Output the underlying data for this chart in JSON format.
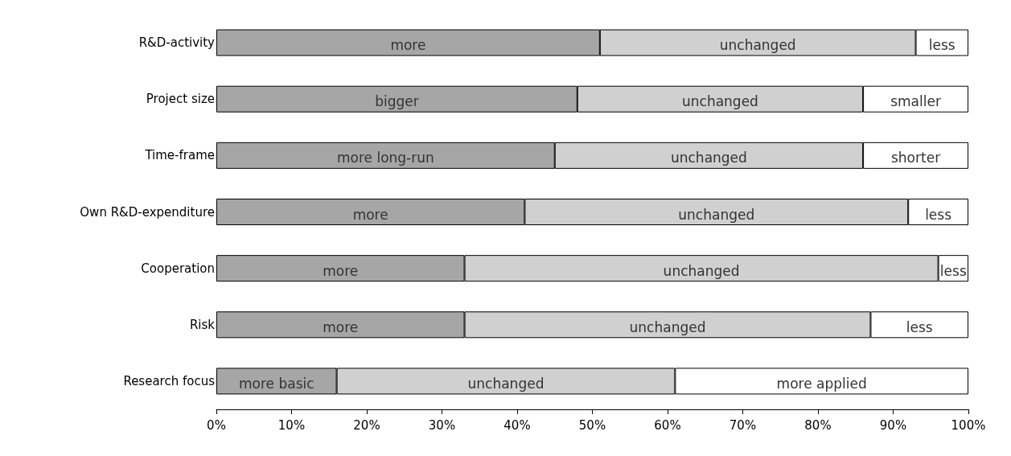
{
  "chart_data": {
    "type": "bar",
    "orientation": "horizontal",
    "stacked": true,
    "grid": false,
    "categories": [
      "R&D-activity",
      "Project size",
      "Time-frame",
      "Own R&D-expenditure",
      "Cooperation",
      "Risk",
      "Research focus"
    ],
    "series": [
      {
        "color": "#a6a6a6",
        "values": [
          51,
          48,
          45,
          41,
          33,
          33,
          16
        ],
        "value_labels": [
          "more",
          "bigger",
          "more long-run",
          "more",
          "more",
          "more",
          "more basic"
        ]
      },
      {
        "color": "#d0d0d0",
        "values": [
          42,
          38,
          41,
          51,
          63,
          54,
          45
        ],
        "value_labels": [
          "unchanged",
          "unchanged",
          "unchanged",
          "unchanged",
          "unchanged",
          "unchanged",
          "unchanged"
        ]
      },
      {
        "color": "#ffffff",
        "values": [
          7,
          14,
          14,
          8,
          4,
          13,
          39
        ],
        "value_labels": [
          "less",
          "smaller",
          "shorter",
          "less",
          "less",
          "less",
          "more applied"
        ]
      }
    ],
    "xlim": [
      0,
      100
    ],
    "xticks": [
      {
        "value": 0,
        "label": "0%"
      },
      {
        "value": 10,
        "label": "10%"
      },
      {
        "value": 20,
        "label": "20%"
      },
      {
        "value": 30,
        "label": "30%"
      },
      {
        "value": 40,
        "label": "40%"
      },
      {
        "value": 50,
        "label": "50%"
      },
      {
        "value": 60,
        "label": "60%"
      },
      {
        "value": 70,
        "label": "70%"
      },
      {
        "value": 80,
        "label": "80%"
      },
      {
        "value": 90,
        "label": "90%"
      },
      {
        "value": 100,
        "label": "100%"
      }
    ]
  }
}
